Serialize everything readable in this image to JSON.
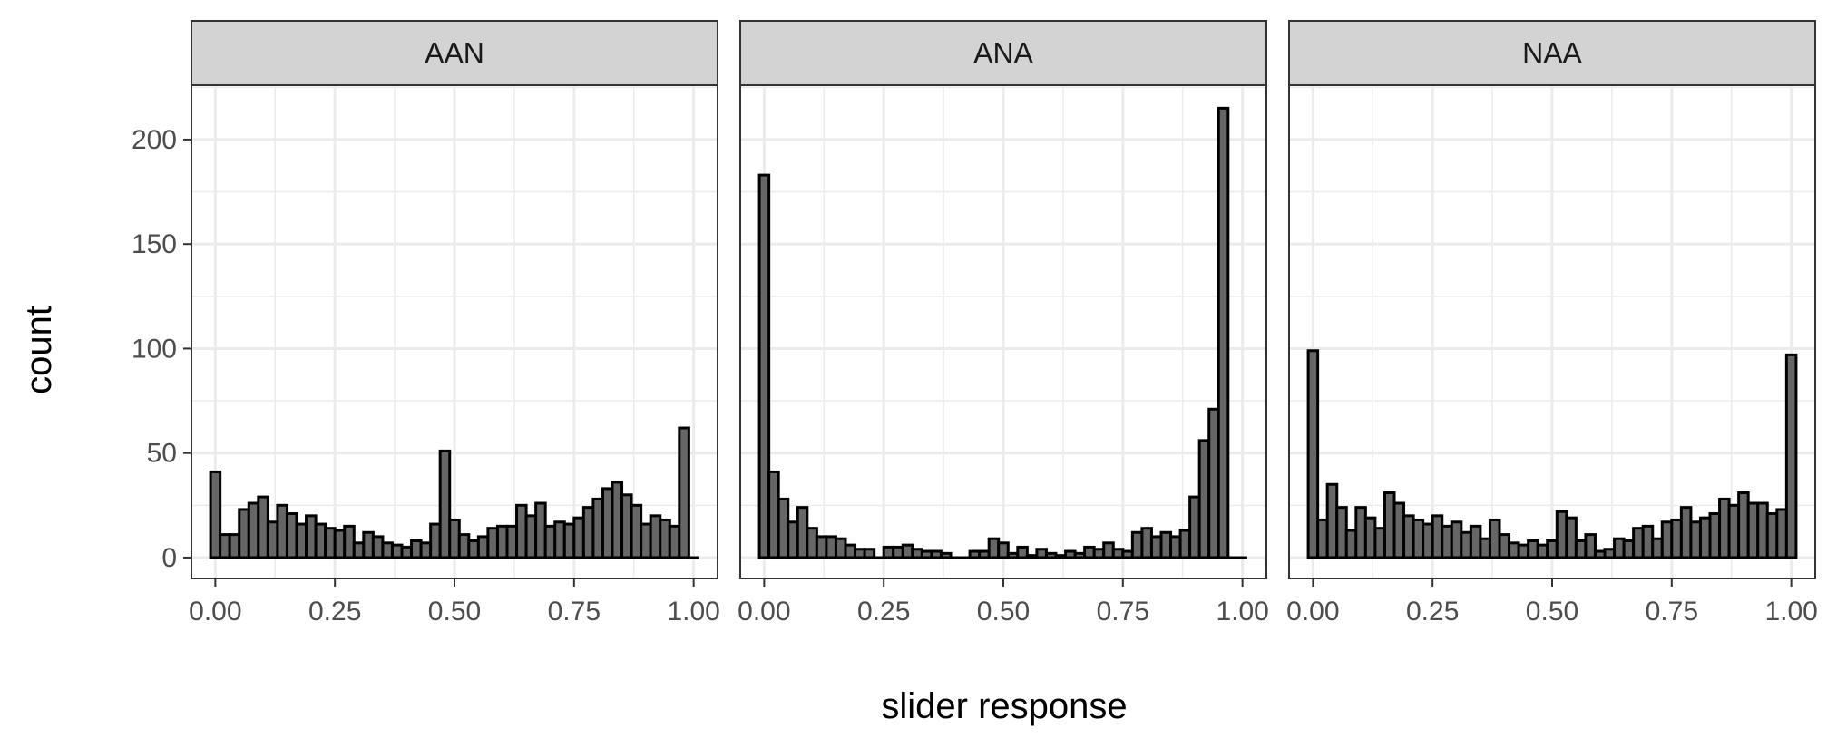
{
  "chart_data": {
    "type": "bar",
    "subtype": "histogram",
    "xlabel": "slider response",
    "ylabel": "count",
    "xlim": [
      -0.05,
      1.05
    ],
    "ylim": [
      -10,
      226
    ],
    "x_ticks": [
      0,
      0.25,
      0.5,
      0.75,
      1
    ],
    "x_tick_labels": [
      "0.00",
      "0.25",
      "0.50",
      "0.75",
      "1.00"
    ],
    "y_ticks": [
      0,
      50,
      100,
      150,
      200
    ],
    "y_tick_labels": [
      "0",
      "50",
      "100",
      "150",
      "200"
    ],
    "bin_width": 0.02,
    "bin_centers": [
      0.0,
      0.02,
      0.04,
      0.06,
      0.08,
      0.1,
      0.12,
      0.14,
      0.16,
      0.18,
      0.2,
      0.22,
      0.24,
      0.26,
      0.28,
      0.3,
      0.32,
      0.34,
      0.36,
      0.38,
      0.4,
      0.42,
      0.44,
      0.46,
      0.48,
      0.5,
      0.52,
      0.54,
      0.56,
      0.58,
      0.6,
      0.62,
      0.64,
      0.66,
      0.68,
      0.7,
      0.72,
      0.74,
      0.76,
      0.78,
      0.8,
      0.82,
      0.84,
      0.86,
      0.88,
      0.9,
      0.92,
      0.94,
      0.96,
      0.98,
      1.0
    ],
    "grid": true,
    "legend": "none",
    "colors": {
      "bar_fill": "#666666",
      "bar_stroke": "#000000",
      "strip_fill": "#d3d3d3",
      "grid": "#ebebeb",
      "panel_border": "#333333"
    },
    "panels": [
      {
        "name": "AAN",
        "values": [
          41,
          11,
          11,
          23,
          26,
          29,
          17,
          25,
          21,
          16,
          20,
          16,
          14,
          13,
          15,
          7,
          12,
          10,
          7,
          6,
          5,
          8,
          7,
          16,
          51,
          18,
          11,
          8,
          10,
          14,
          15,
          15,
          25,
          20,
          26,
          15,
          17,
          16,
          19,
          24,
          28,
          33,
          36,
          30,
          25,
          16,
          20,
          18,
          15,
          62,
          0
        ]
      },
      {
        "name": "ANA",
        "values": [
          183,
          41,
          28,
          17,
          24,
          14,
          10,
          10,
          9,
          6,
          4,
          4,
          0,
          5,
          5,
          6,
          4,
          3,
          3,
          2,
          0,
          0,
          3,
          3,
          9,
          7,
          2,
          5,
          1,
          4,
          2,
          1,
          3,
          2,
          5,
          4,
          7,
          4,
          3,
          12,
          14,
          10,
          12,
          10,
          13,
          29,
          56,
          71,
          215,
          0,
          0
        ]
      },
      {
        "name": "NAA",
        "values": [
          99,
          18,
          35,
          24,
          13,
          24,
          19,
          14,
          31,
          26,
          20,
          18,
          16,
          20,
          15,
          17,
          12,
          15,
          9,
          18,
          11,
          7,
          6,
          8,
          6,
          8,
          22,
          19,
          8,
          11,
          3,
          4,
          9,
          8,
          14,
          15,
          9,
          17,
          18,
          24,
          17,
          19,
          21,
          28,
          25,
          31,
          26,
          26,
          21,
          23,
          97
        ]
      }
    ]
  }
}
